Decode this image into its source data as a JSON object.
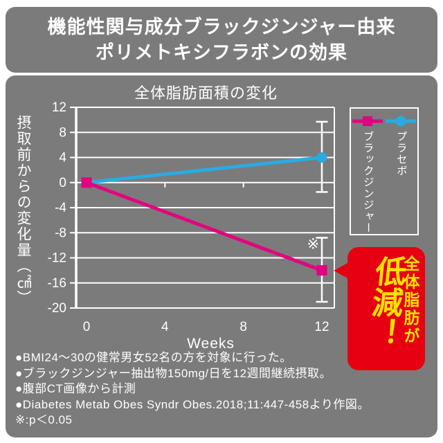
{
  "header": {
    "title_line1": "機能性関与成分ブラックジンジャー由来",
    "title_line2": "ポリメトキシフラボンの効果"
  },
  "chart_data": {
    "type": "line",
    "title": "全体脂肪面積の変化",
    "xlabel": "Weeks",
    "ylabel": "摂取前からの変化量（㎠）",
    "xlim": [
      0,
      12
    ],
    "ylim": [
      -20,
      12
    ],
    "x_ticks": [
      0,
      4,
      8,
      12
    ],
    "y_ticks": [
      12,
      8,
      4,
      0,
      -4,
      -8,
      -12,
      -16,
      -20
    ],
    "grid": true,
    "legend_position": "right",
    "series": [
      {
        "name": "プラセボ",
        "color": "#29abe2",
        "marker": "circle",
        "x": [
          0,
          12
        ],
        "values": [
          0,
          4
        ],
        "error_bars": [
          {
            "x": 12,
            "low": -1.5,
            "high": 9.7
          }
        ]
      },
      {
        "name": "ブラックジンジャー",
        "color": "#e4007f",
        "marker": "square",
        "x": [
          0,
          12
        ],
        "values": [
          0,
          -14
        ],
        "error_bars": [
          {
            "x": 12,
            "low": -19,
            "high": -8.8
          }
        ]
      }
    ],
    "annotation": {
      "symbol": "※",
      "week": 11.55,
      "value": -9.8
    }
  },
  "callout": {
    "text_sub": "全体脂肪が",
    "text_main": "低減！",
    "bg_color": "#e60012",
    "text_color": "#ffe100"
  },
  "footnotes": [
    "●BMI24〜30の健常男女52名の方を対象に行った。",
    "●ブラックジンジャー抽出物150mg/日を12週間継続摂取。",
    "●腹部CT画像から計測",
    "●Diabetes Metab Obes Syndr Obes.2018;11:447-458より作図。",
    "※:p＜0.05"
  ],
  "colors": {
    "panel_gray": "#7b7b7b",
    "text_white": "#ffffff",
    "placebo_blue": "#29abe2",
    "black_ginger_magenta": "#e4007f",
    "callout_red": "#e60012",
    "callout_yellow": "#ffe100"
  }
}
